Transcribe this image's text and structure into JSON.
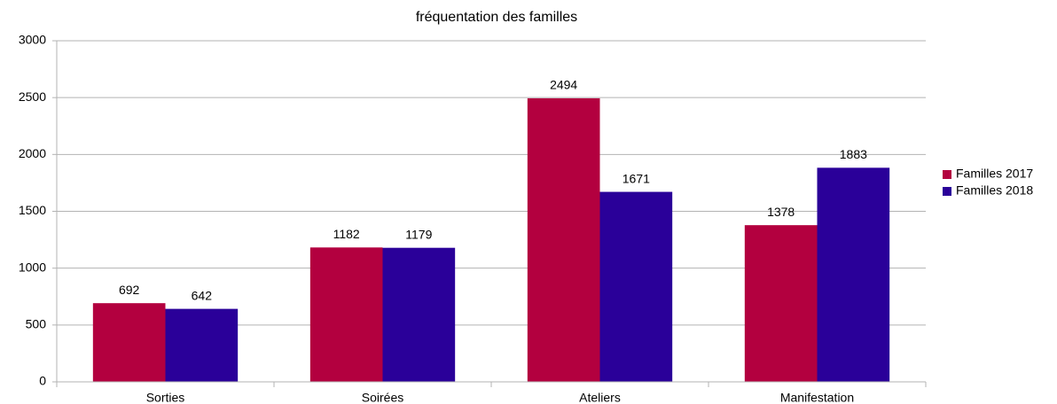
{
  "chart_data": {
    "type": "bar",
    "title": "fréquentation des familles",
    "categories": [
      "Sorties",
      "Soirées",
      "Ateliers",
      "Manifestation"
    ],
    "series": [
      {
        "name": "Familles 2017",
        "color": "#b3003f",
        "values": [
          692,
          1182,
          2494,
          1378
        ]
      },
      {
        "name": "Familles 2018",
        "color": "#2a0099",
        "values": [
          642,
          1179,
          1671,
          1883
        ]
      }
    ],
    "ylim": [
      0,
      3000
    ],
    "yticks": [
      0,
      500,
      1000,
      1500,
      2000,
      2500,
      3000
    ],
    "grid": true,
    "legend": "right"
  }
}
